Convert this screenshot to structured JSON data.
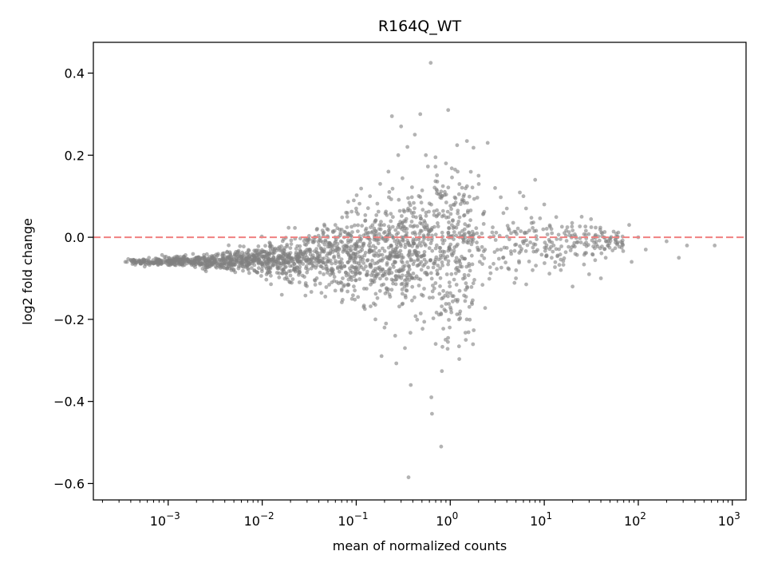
{
  "chart_data": {
    "type": "scatter",
    "title": "R164Q_WT",
    "xlabel": "mean of normalized counts",
    "ylabel": "log2 fold change",
    "xscale": "log",
    "xlim": [
      0.00016,
      1400
    ],
    "ylim": [
      -0.64,
      0.475
    ],
    "grid": false,
    "legend": "none",
    "x_ticks": [
      {
        "value": 0.001,
        "base": "10",
        "exp": "−3"
      },
      {
        "value": 0.01,
        "base": "10",
        "exp": "−2"
      },
      {
        "value": 0.1,
        "base": "10",
        "exp": "−1"
      },
      {
        "value": 1,
        "base": "10",
        "exp": "0"
      },
      {
        "value": 10,
        "base": "10",
        "exp": "1"
      },
      {
        "value": 100,
        "base": "10",
        "exp": "2"
      },
      {
        "value": 1000,
        "base": "10",
        "exp": "3"
      }
    ],
    "y_ticks": [
      {
        "value": 0.4,
        "label": "0.4"
      },
      {
        "value": 0.2,
        "label": "0.2"
      },
      {
        "value": 0.0,
        "label": "0.0"
      },
      {
        "value": -0.2,
        "label": "−0.2"
      },
      {
        "value": -0.4,
        "label": "−0.4"
      },
      {
        "value": -0.6,
        "label": "−0.6"
      }
    ],
    "reference_line": {
      "y": 0.0,
      "color": "#f08080",
      "style": "dashed"
    },
    "point_color": "#808080",
    "points": [
      [
        0.00035,
        -0.06
      ],
      [
        0.0004,
        -0.055
      ],
      [
        0.0005,
        -0.058
      ],
      [
        0.0006,
        -0.062
      ],
      [
        0.0008,
        -0.057
      ],
      [
        0.001,
        -0.06
      ],
      [
        0.0012,
        -0.055
      ],
      [
        0.0015,
        -0.058
      ],
      [
        0.002,
        -0.053
      ],
      [
        0.0025,
        -0.056
      ],
      [
        0.003,
        -0.05
      ],
      [
        0.004,
        -0.052
      ],
      [
        0.005,
        -0.047
      ],
      [
        0.006,
        -0.05
      ],
      [
        0.008,
        -0.044
      ],
      [
        0.01,
        -0.047
      ],
      [
        0.012,
        -0.04
      ],
      [
        0.015,
        -0.045
      ],
      [
        0.02,
        -0.038
      ],
      [
        0.025,
        -0.05
      ],
      [
        0.03,
        -0.03
      ],
      [
        0.035,
        -0.07
      ],
      [
        0.04,
        -0.02
      ],
      [
        0.045,
        -0.09
      ],
      [
        0.05,
        0.0
      ],
      [
        0.055,
        -0.11
      ],
      [
        0.06,
        0.03
      ],
      [
        0.07,
        -0.13
      ],
      [
        0.08,
        0.05
      ],
      [
        0.09,
        -0.15
      ],
      [
        0.1,
        0.07
      ],
      [
        0.12,
        -0.17
      ],
      [
        0.14,
        0.1
      ],
      [
        0.16,
        -0.2
      ],
      [
        0.18,
        0.13
      ],
      [
        0.2,
        -0.22
      ],
      [
        0.22,
        0.16
      ],
      [
        0.24,
        0.295
      ],
      [
        0.26,
        -0.24
      ],
      [
        0.28,
        0.2
      ],
      [
        0.3,
        0.27
      ],
      [
        0.33,
        -0.27
      ],
      [
        0.35,
        0.22
      ],
      [
        0.36,
        -0.585
      ],
      [
        0.38,
        -0.36
      ],
      [
        0.42,
        0.25
      ],
      [
        0.48,
        0.3
      ],
      [
        0.55,
        0.2
      ],
      [
        0.62,
        0.425
      ],
      [
        0.63,
        -0.39
      ],
      [
        0.64,
        -0.43
      ],
      [
        0.7,
        -0.26
      ],
      [
        0.8,
        -0.51
      ],
      [
        0.9,
        0.18
      ],
      [
        0.95,
        0.31
      ],
      [
        1.2,
        0.16
      ],
      [
        1.5,
        -0.2
      ],
      [
        2.0,
        0.15
      ],
      [
        2.5,
        0.23
      ],
      [
        3.0,
        0.12
      ],
      [
        4.0,
        0.07
      ],
      [
        5.0,
        -0.1
      ],
      [
        6.0,
        0.1
      ],
      [
        8.0,
        0.14
      ],
      [
        10.0,
        0.08
      ],
      [
        12.0,
        -0.05
      ],
      [
        15.0,
        -0.08
      ],
      [
        20.0,
        -0.12
      ],
      [
        25.0,
        0.05
      ],
      [
        30.0,
        -0.09
      ],
      [
        40.0,
        -0.1
      ],
      [
        45.0,
        -0.05
      ],
      [
        60.0,
        0.0
      ],
      [
        80.0,
        0.03
      ],
      [
        85.0,
        -0.06
      ],
      [
        100.0,
        0.0
      ],
      [
        120.0,
        -0.03
      ],
      [
        200.0,
        -0.01
      ],
      [
        270.0,
        -0.05
      ],
      [
        330.0,
        -0.02
      ],
      [
        650.0,
        -0.02
      ]
    ]
  }
}
